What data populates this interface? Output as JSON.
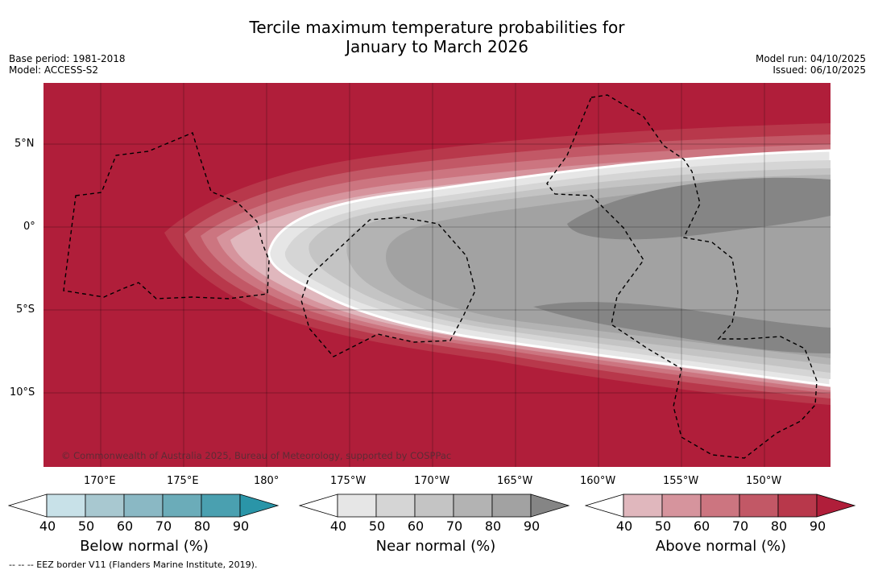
{
  "title": {
    "line1": "Tercile maximum temperature probabilities for",
    "line2": "January to March 2026"
  },
  "left_meta": {
    "base_period": "Base period: 1981-2018",
    "model": "Model: ACCESS-S2"
  },
  "right_meta": {
    "model_run": "Model run: 04/10/2025",
    "issued": "Issued: 06/10/2025"
  },
  "map": {
    "lat_ticks": [
      "5°N",
      "0°",
      "5°S",
      "10°S"
    ],
    "lon_ticks": [
      "170°E",
      "175°E",
      "180°",
      "175°W",
      "170°W",
      "165°W",
      "160°W",
      "155°W",
      "150°W"
    ],
    "copyright": "© Commonwealth of Australia 2025, Bureau of Meteorology, supported by COSPPac"
  },
  "colorbars": [
    {
      "label": "Below normal (%)",
      "ticks": [
        "40",
        "50",
        "60",
        "70",
        "80",
        "90"
      ],
      "colors": [
        "#ffffff",
        "#c8e1e8",
        "#a8c8d0",
        "#8ab8c4",
        "#6bacb9",
        "#4aa0b0",
        "#2a95a8"
      ]
    },
    {
      "label": "Near normal (%)",
      "ticks": [
        "40",
        "50",
        "60",
        "70",
        "80",
        "90"
      ],
      "colors": [
        "#ffffff",
        "#e6e6e6",
        "#d5d5d5",
        "#c4c4c4",
        "#b3b3b3",
        "#a2a2a2",
        "#858585"
      ]
    },
    {
      "label": "Above normal (%)",
      "ticks": [
        "40",
        "50",
        "60",
        "70",
        "80",
        "90"
      ],
      "colors": [
        "#ffffff",
        "#e0b7bd",
        "#d6949d",
        "#cc7580",
        "#c25866",
        "#b8384b",
        "#b01e3a"
      ]
    }
  ],
  "footer": "--  --  -- EEZ border V11 (Flanders Marine Institute, 2019)."
}
